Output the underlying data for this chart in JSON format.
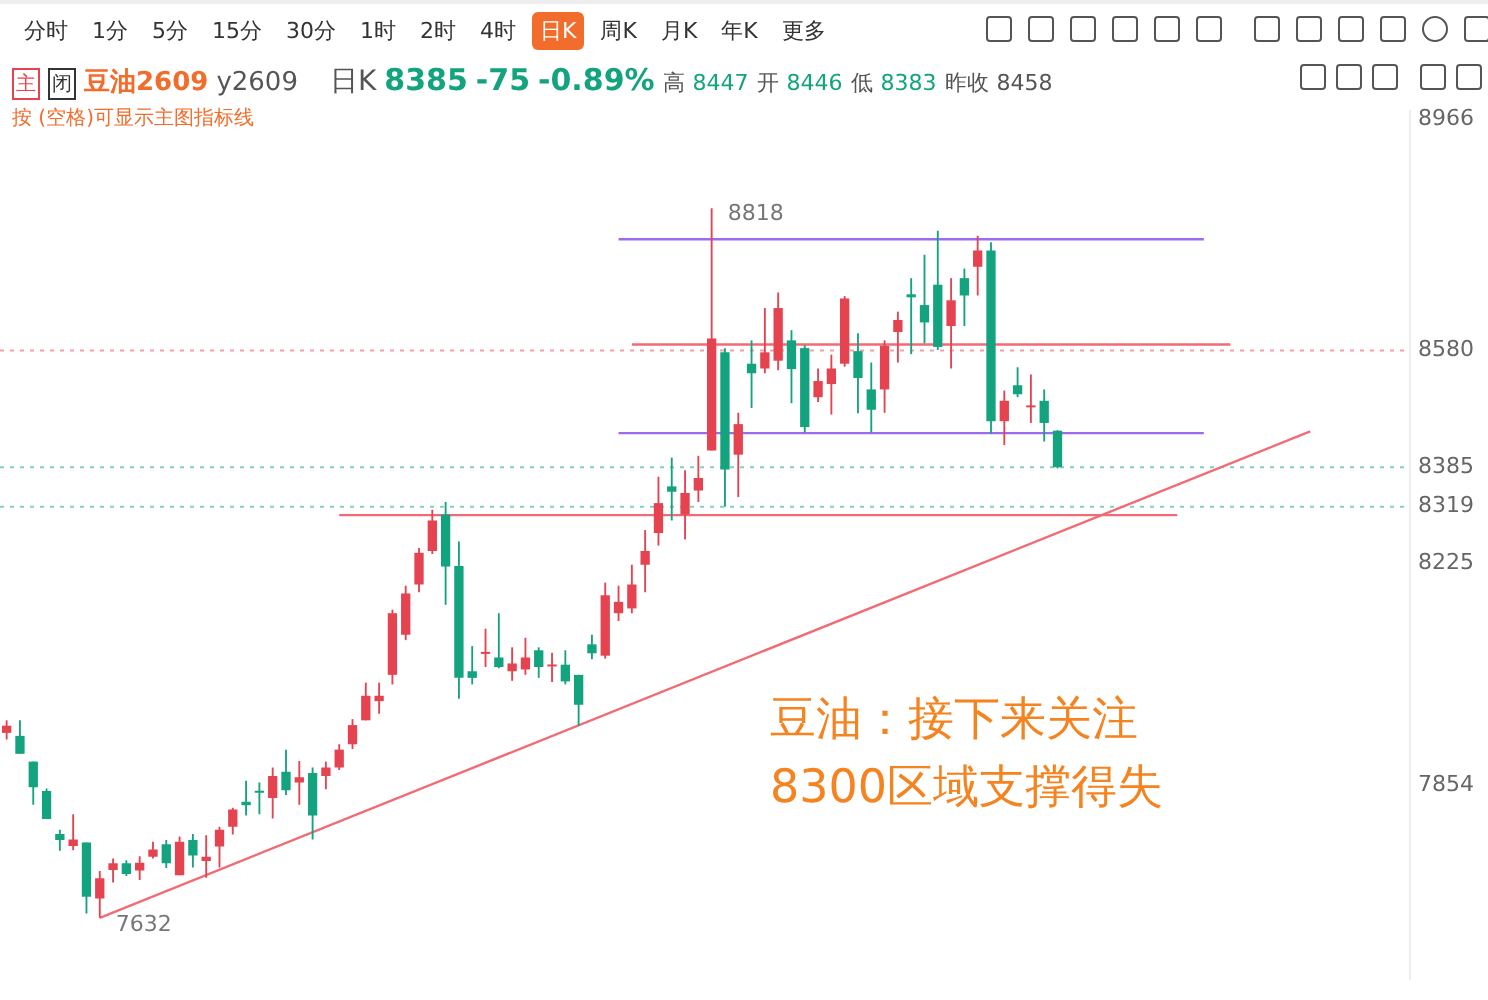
{
  "chart_data": {
    "type": "candlestick",
    "title": "豆油2609",
    "subtitle": "按 (空格)可显示主图指标线",
    "categories": [
      null,
      null,
      null,
      null,
      null,
      null,
      null,
      null,
      null,
      null,
      null,
      null,
      null,
      null,
      null,
      null,
      null,
      null,
      null,
      null,
      null,
      null,
      null,
      null,
      null,
      null,
      null,
      null,
      null,
      null,
      null,
      null,
      null,
      null,
      null,
      null,
      null,
      null,
      null,
      null,
      null,
      null,
      null,
      null,
      null,
      null,
      null,
      null,
      null,
      null,
      null,
      null,
      null,
      null,
      null,
      null,
      null,
      null,
      null,
      null,
      null,
      null,
      null,
      null,
      null,
      null,
      null,
      null,
      null,
      null,
      null,
      null,
      null,
      null,
      null,
      null,
      null,
      null,
      null,
      null,
      null,
      null,
      null,
      null,
      null,
      null,
      null,
      null,
      null,
      null,
      null,
      null,
      null,
      null,
      null,
      null,
      null,
      null,
      null,
      null,
      null,
      null,
      null,
      null,
      null,
      null
    ],
    "ohlc": [
      [
        7941,
        7962,
        7930,
        7953
      ],
      [
        7936,
        7962,
        7906,
        7906
      ],
      [
        7893,
        7893,
        7821,
        7850
      ],
      [
        7844,
        7848,
        7797,
        7797
      ],
      [
        7772,
        7779,
        7744,
        7762
      ],
      [
        7752,
        7805,
        7745,
        7763
      ],
      [
        7758,
        7758,
        7639,
        7667
      ],
      [
        7664,
        7710,
        7632,
        7698
      ],
      [
        7712,
        7731,
        7691,
        7723
      ],
      [
        7723,
        7728,
        7702,
        7705
      ],
      [
        7711,
        7735,
        7695,
        7724
      ],
      [
        7734,
        7759,
        7731,
        7746
      ],
      [
        7755,
        7762,
        7715,
        7723
      ],
      [
        7703,
        7768,
        7703,
        7759
      ],
      [
        7762,
        7772,
        7716,
        7736
      ],
      [
        7727,
        7770,
        7699,
        7734
      ],
      [
        7751,
        7784,
        7716,
        7779
      ],
      [
        7784,
        7816,
        7771,
        7813
      ],
      [
        7826,
        7861,
        7803,
        7820
      ],
      [
        7843,
        7858,
        7805,
        7841
      ],
      [
        7832,
        7883,
        7798,
        7869
      ],
      [
        7876,
        7913,
        7837,
        7845
      ],
      [
        7858,
        7894,
        7821,
        7867
      ],
      [
        7874,
        7883,
        7763,
        7803
      ],
      [
        7869,
        7893,
        7847,
        7883
      ],
      [
        7883,
        7922,
        7879,
        7913
      ],
      [
        7922,
        7964,
        7914,
        7954
      ],
      [
        7962,
        8025,
        7962,
        8003
      ],
      [
        7994,
        8025,
        7973,
        8003
      ],
      [
        8038,
        8147,
        8022,
        8141
      ],
      [
        8105,
        8187,
        8096,
        8174
      ],
      [
        8189,
        8250,
        8176,
        8242
      ],
      [
        8245,
        8314,
        8240,
        8296
      ],
      [
        8306,
        8327,
        8155,
        8219
      ],
      [
        8220,
        8261,
        7998,
        8033
      ],
      [
        8044,
        8086,
        8022,
        8033
      ],
      [
        8073,
        8115,
        8051,
        8075
      ],
      [
        8067,
        8141,
        8049,
        8051
      ],
      [
        8044,
        8084,
        8028,
        8057
      ],
      [
        8047,
        8100,
        8038,
        8067
      ],
      [
        8079,
        8084,
        8033,
        8051
      ],
      [
        8052,
        8075,
        8026,
        8055
      ],
      [
        8055,
        8079,
        8022,
        8027
      ],
      [
        8038,
        8038,
        7953,
        7988
      ],
      [
        8089,
        8105,
        8064,
        8074
      ],
      [
        8070,
        8192,
        8065,
        8171
      ],
      [
        8141,
        8187,
        8128,
        8160
      ],
      [
        8149,
        8222,
        8141,
        8189
      ],
      [
        8222,
        8280,
        8176,
        8245
      ],
      [
        8275,
        8369,
        8254,
        8325
      ],
      [
        8353,
        8401,
        8296,
        8344
      ],
      [
        8306,
        8380,
        8264,
        8342
      ],
      [
        8346,
        8404,
        8327,
        8367
      ],
      [
        8413,
        8818,
        8413,
        8600
      ],
      [
        8577,
        8584,
        8319,
        8381
      ],
      [
        8406,
        8476,
        8335,
        8457
      ],
      [
        8558,
        8597,
        8484,
        8542
      ],
      [
        8550,
        8651,
        8542,
        8577
      ],
      [
        8563,
        8677,
        8547,
        8651
      ],
      [
        8597,
        8614,
        8492,
        8549
      ],
      [
        8584,
        8589,
        8443,
        8452
      ],
      [
        8502,
        8550,
        8494,
        8529
      ],
      [
        8524,
        8573,
        8473,
        8550
      ],
      [
        8558,
        8671,
        8553,
        8667
      ],
      [
        8579,
        8609,
        8475,
        8534
      ],
      [
        8515,
        8560,
        8443,
        8481
      ],
      [
        8515,
        8597,
        8476,
        8588
      ],
      [
        8611,
        8645,
        8560,
        8631
      ],
      [
        8674,
        8701,
        8574,
        8669
      ],
      [
        8656,
        8740,
        8592,
        8627
      ],
      [
        8690,
        8780,
        8581,
        8586
      ],
      [
        8621,
        8701,
        8550,
        8664
      ],
      [
        8701,
        8717,
        8621,
        8672
      ],
      [
        8720,
        8772,
        8672,
        8747
      ],
      [
        8747,
        8761,
        8441,
        8462
      ],
      [
        8462,
        8513,
        8422,
        8496
      ],
      [
        8522,
        8552,
        8502,
        8507
      ],
      [
        8485,
        8540,
        8459,
        8487
      ],
      [
        8496,
        8515,
        8428,
        8459
      ],
      [
        8446,
        8447,
        8383,
        8385
      ],
      null,
      null,
      null,
      null,
      null,
      null,
      null,
      null,
      null,
      null,
      null,
      null,
      null,
      null,
      null,
      null,
      null,
      null,
      null,
      null,
      null,
      null,
      null,
      null,
      null,
      null
    ],
    "colors": [
      "#e5434f",
      "#14a37f",
      "#14a37f",
      "#14a37f",
      "#14a37f",
      "#e5434f",
      "#14a37f",
      "#e5434f",
      "#e5434f",
      "#14a37f",
      "#e5434f",
      "#e5434f",
      "#14a37f",
      "#e5434f",
      "#14a37f",
      "#e5434f",
      "#e5434f",
      "#e5434f",
      "#14a37f",
      "#14a37f",
      "#e5434f",
      "#14a37f",
      "#e5434f",
      "#14a37f",
      "#e5434f",
      "#e5434f",
      "#e5434f",
      "#e5434f",
      "#e5434f",
      "#e5434f",
      "#e5434f",
      "#e5434f",
      "#e5434f",
      "#14a37f",
      "#14a37f",
      "#14a37f",
      "#e5434f",
      "#14a37f",
      "#e5434f",
      "#e5434f",
      "#14a37f",
      "#e5434f",
      "#14a37f",
      "#14a37f",
      "#14a37f",
      "#e5434f",
      "#e5434f",
      "#e5434f",
      "#e5434f",
      "#e5434f",
      "#14a37f",
      "#e5434f",
      "#e5434f",
      "#e5434f",
      "#14a37f",
      "#e5434f",
      "#14a37f",
      "#e5434f",
      "#e5434f",
      "#14a37f",
      "#14a37f",
      "#e5434f",
      "#e5434f",
      "#e5434f",
      "#14a37f",
      "#14a37f",
      "#e5434f",
      "#e5434f",
      "#14a37f",
      "#14a37f",
      "#14a37f",
      "#e5434f",
      "#14a37f",
      "#e5434f",
      "#14a37f",
      "#e5434f",
      "#14a37f",
      "#e5434f",
      "#14a37f",
      "#14a37f",
      null,
      null,
      null,
      null,
      null,
      null,
      null,
      null,
      null,
      null,
      null,
      null,
      null,
      null,
      null,
      null,
      null,
      null,
      null,
      null,
      null,
      null,
      null,
      null,
      null,
      null
    ],
    "series": [
      {
        "type": "line",
        "color": "#9b6cf0",
        "values": [
          null,
          null,
          null,
          null,
          null,
          null,
          null,
          null,
          null,
          null,
          null,
          null,
          null,
          null,
          null,
          null,
          null,
          null,
          null,
          null,
          null,
          null,
          null,
          null,
          null,
          null,
          null,
          null,
          null,
          null,
          null,
          null,
          null,
          null,
          null,
          null,
          null,
          null,
          null,
          null,
          null,
          null,
          null,
          null,
          null,
          null,
          8766,
          null,
          null,
          null,
          null,
          null,
          null,
          null,
          null,
          null,
          null,
          null,
          null,
          null,
          null,
          null,
          null,
          null,
          null,
          null,
          null,
          null,
          null,
          null,
          null,
          null,
          null,
          null,
          null,
          null,
          null,
          null,
          null,
          null,
          null,
          null,
          null,
          null,
          null,
          null,
          null,
          null,
          null,
          null,
          8766,
          null,
          null,
          null,
          null,
          null,
          null,
          null,
          null,
          null,
          null,
          null,
          null,
          null,
          null,
          null
        ]
      },
      {
        "type": "line",
        "color": "#9b6cf0",
        "values": [
          null,
          null,
          null,
          null,
          null,
          null,
          null,
          null,
          null,
          null,
          null,
          null,
          null,
          null,
          null,
          null,
          null,
          null,
          null,
          null,
          null,
          null,
          null,
          null,
          null,
          null,
          null,
          null,
          null,
          null,
          null,
          null,
          null,
          null,
          null,
          null,
          null,
          null,
          null,
          null,
          null,
          null,
          null,
          null,
          null,
          null,
          8442,
          null,
          null,
          null,
          null,
          null,
          null,
          null,
          null,
          null,
          null,
          null,
          null,
          null,
          null,
          null,
          null,
          null,
          null,
          null,
          null,
          null,
          null,
          null,
          null,
          null,
          null,
          null,
          null,
          null,
          null,
          null,
          null,
          null,
          null,
          null,
          null,
          null,
          null,
          null,
          null,
          null,
          null,
          null,
          8442,
          null,
          null,
          null,
          null,
          null,
          null,
          null,
          null,
          null,
          null,
          null,
          null,
          null,
          null,
          null
        ]
      },
      {
        "type": "line",
        "color": "#f26b74",
        "values": [
          null,
          null,
          null,
          null,
          null,
          null,
          null,
          7632,
          null,
          null,
          null,
          null,
          null,
          null,
          null,
          null,
          null,
          null,
          null,
          null,
          null,
          null,
          null,
          null,
          null,
          null,
          null,
          null,
          null,
          null,
          null,
          null,
          null,
          null,
          null,
          null,
          null,
          null,
          null,
          null,
          null,
          null,
          null,
          null,
          null,
          null,
          null,
          null,
          null,
          null,
          null,
          null,
          null,
          null,
          null,
          null,
          null,
          null,
          null,
          null,
          null,
          null,
          null,
          null,
          null,
          null,
          null,
          null,
          null,
          null,
          null,
          null,
          null,
          null,
          null,
          null,
          null,
          null,
          null,
          null,
          null,
          null,
          null,
          null,
          null,
          null,
          null,
          null,
          null,
          null,
          null,
          null,
          null,
          null,
          null,
          null,
          null,
          null,
          8445,
          null,
          null,
          null,
          null,
          null,
          null,
          null
        ]
      },
      {
        "type": "line",
        "color": "#f26b74",
        "values": [
          null,
          null,
          null,
          null,
          null,
          null,
          null,
          null,
          null,
          null,
          null,
          null,
          null,
          null,
          null,
          null,
          null,
          null,
          null,
          null,
          null,
          null,
          null,
          null,
          null,
          8305,
          null,
          null,
          null,
          null,
          null,
          null,
          null,
          null,
          null,
          null,
          null,
          null,
          null,
          null,
          null,
          null,
          null,
          null,
          null,
          null,
          null,
          null,
          null,
          null,
          null,
          null,
          null,
          null,
          null,
          null,
          null,
          null,
          null,
          null,
          null,
          null,
          null,
          null,
          null,
          null,
          null,
          null,
          null,
          null,
          null,
          null,
          null,
          null,
          null,
          null,
          null,
          null,
          null,
          null,
          null,
          null,
          null,
          null,
          null,
          null,
          null,
          null,
          8305,
          null,
          null,
          null,
          null,
          null,
          null,
          null,
          null,
          null,
          null,
          null,
          null,
          null,
          null,
          null,
          null,
          null
        ]
      },
      {
        "type": "line",
        "color": "#f26b74",
        "values": [
          null,
          null,
          null,
          null,
          null,
          null,
          null,
          null,
          null,
          null,
          null,
          null,
          null,
          null,
          null,
          null,
          null,
          null,
          null,
          null,
          null,
          null,
          null,
          null,
          null,
          null,
          null,
          null,
          null,
          null,
          null,
          null,
          null,
          null,
          null,
          null,
          null,
          null,
          null,
          null,
          null,
          null,
          null,
          null,
          null,
          null,
          null,
          8590,
          null,
          null,
          null,
          null,
          null,
          null,
          null,
          null,
          null,
          null,
          null,
          null,
          null,
          null,
          null,
          null,
          null,
          null,
          null,
          null,
          null,
          null,
          null,
          null,
          null,
          null,
          null,
          null,
          null,
          null,
          null,
          null,
          null,
          null,
          null,
          null,
          null,
          null,
          null,
          null,
          null,
          null,
          null,
          null,
          8590,
          null,
          null,
          null,
          null,
          null,
          null,
          null,
          null,
          null,
          null,
          null,
          null,
          null
        ]
      }
    ],
    "ylim": [
      7530,
      8980
    ],
    "yticks": [
      8966,
      8580,
      8385,
      8319,
      8225,
      7854
    ],
    "tick_labels": "y",
    "ref_lines": [
      {
        "axis": "y",
        "value": 8580,
        "color": "#f4a0a6",
        "line_style": "dotted"
      },
      {
        "axis": "y",
        "value": 8385,
        "color": "#7fd1bb",
        "line_style": "dotted"
      },
      {
        "axis": "y",
        "value": 8319,
        "color": "#7fd1bb",
        "line_style": "dotted"
      }
    ],
    "annotations": [
      "分时",
      "1分",
      "5分",
      "15分",
      "30分",
      "1时",
      "2时",
      "4时",
      "日K",
      "周K",
      "月K",
      "年K",
      "更多",
      "主",
      "闭",
      "y2609",
      "日K",
      "8385",
      "-75",
      "-0.89%",
      "高",
      "8447",
      "开",
      "8446",
      "低",
      "8383",
      "昨收",
      "8458",
      "豆油：接下来关注",
      "8300区域支撑得失",
      "8818",
      "7632"
    ]
  }
}
